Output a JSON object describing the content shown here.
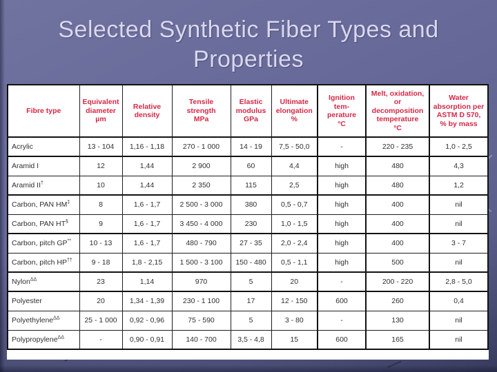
{
  "slide": {
    "title": "Selected Synthetic Fiber Types and\nProperties"
  },
  "colors": {
    "background_base": "#686b9a",
    "title_text": "#dad7ef",
    "header_text_red": "#d32846",
    "table_background": "#ffffff",
    "table_border": "#111111",
    "data_text": "#2e2e2e"
  },
  "table": {
    "columns": [
      {
        "label": "Fibre type"
      },
      {
        "label": "Equivalent\ndiameter\nµm"
      },
      {
        "label": "Relative\ndensity"
      },
      {
        "label": "Tensile\nstrength\nMPa"
      },
      {
        "label": "Elastic\nmodulus\nGPa"
      },
      {
        "label": "Ultimate\nelongation\n%"
      },
      {
        "label": "Ignition\ntem-\nperature\n°C"
      },
      {
        "label": "Melt, oxidation,\nor\ndecomposition\ntemperature\n°C"
      },
      {
        "label": "Water\nabsorption per\nASTM D 570,\n% by mass"
      }
    ],
    "rows": [
      {
        "name": "Acrylic",
        "sup": "",
        "group_end": true,
        "values": [
          "13 - 104",
          "1,16 - 1,18",
          "270 - 1 000",
          "14 - 19",
          "7,5 - 50,0",
          "-",
          "220 - 235",
          "1,0 - 2,5"
        ]
      },
      {
        "name": "Aramid I",
        "sup": "",
        "group_end": false,
        "values": [
          "12",
          "1,44",
          "2 900",
          "60",
          "4,4",
          "high",
          "480",
          "4,3"
        ]
      },
      {
        "name": "Aramid II",
        "sup": "†",
        "group_end": true,
        "values": [
          "10",
          "1,44",
          "2 350",
          "115",
          "2,5",
          "high",
          "480",
          "1,2"
        ]
      },
      {
        "name": "Carbon, PAN HM",
        "sup": "‡",
        "group_end": false,
        "values": [
          "8",
          "1,6 - 1,7",
          "2 500 - 3 000",
          "380",
          "0,5 - 0,7",
          "high",
          "400",
          "nil"
        ]
      },
      {
        "name": "Carbon, PAN HT",
        "sup": "§",
        "group_end": true,
        "values": [
          "9",
          "1,6 - 1,7",
          "3 450 - 4 000",
          "230",
          "1,0 - 1,5",
          "high",
          "400",
          "nil"
        ]
      },
      {
        "name": "Carbon, pitch GP",
        "sup": "**",
        "group_end": false,
        "values": [
          "10 - 13",
          "1,6 - 1,7",
          "480 - 790",
          "27 - 35",
          "2,0 - 2,4",
          "high",
          "400",
          "3 - 7"
        ]
      },
      {
        "name": "Carbon, pitch HP",
        "sup": "††",
        "group_end": true,
        "values": [
          "9 - 18",
          "1,8 - 2,15",
          "1 500 - 3 100",
          "150 - 480",
          "0,5 - 1,1",
          "high",
          "500",
          "nil"
        ]
      },
      {
        "name": "Nylon",
        "sup": "ΔΔ",
        "group_end": true,
        "values": [
          "23",
          "1,14",
          "970",
          "5",
          "20",
          "-",
          "200 - 220",
          "2,8 - 5,0"
        ]
      },
      {
        "name": "Polyester",
        "sup": "",
        "group_end": false,
        "values": [
          "20",
          "1,34 - 1,39",
          "230 - 1 100",
          "17",
          "12 - 150",
          "600",
          "260",
          "0,4"
        ]
      },
      {
        "name": "Polyethylene",
        "sup": "ΔΔ",
        "group_end": false,
        "values": [
          "25 - 1 000",
          "0,92 - 0,96",
          "75 - 590",
          "5",
          "3 - 80",
          "-",
          "130",
          "nil"
        ]
      },
      {
        "name": "Polypropylene",
        "sup": "ΔΔ",
        "group_end": false,
        "values": [
          "-",
          "0,90 - 0,91",
          "140 - 700",
          "3,5 - 4,8",
          "15",
          "600",
          "165",
          "nil"
        ]
      }
    ]
  }
}
